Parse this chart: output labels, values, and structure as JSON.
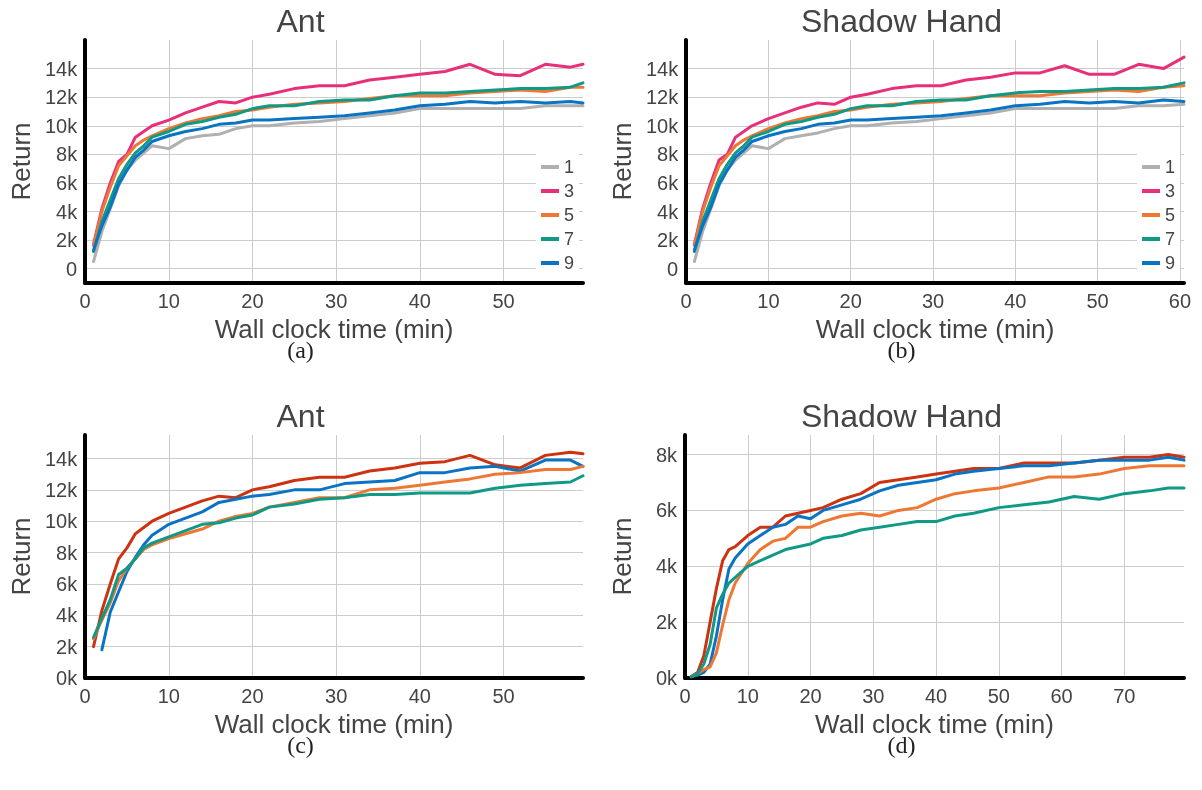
{
  "chart_data": [
    {
      "type": "line",
      "title": "Ant",
      "xlabel": "Wall clock time (min)",
      "ylabel": "Return",
      "annotations": [
        "(a)"
      ],
      "grid": true,
      "legend": "bottom right",
      "marker": "none",
      "xlim": [
        0,
        59.5
      ],
      "xticks": [
        0,
        10,
        20,
        30,
        40,
        50
      ],
      "ylim": [
        -1000,
        16000
      ],
      "yticks": [
        {
          "value": 0,
          "label": "0"
        },
        {
          "value": 2000,
          "label": "2k"
        },
        {
          "value": 4000,
          "label": "4k"
        },
        {
          "value": 6000,
          "label": "6k"
        },
        {
          "value": 8000,
          "label": "8k"
        },
        {
          "value": 10000,
          "label": "10k"
        },
        {
          "value": 12000,
          "label": "12k"
        },
        {
          "value": 14000,
          "label": "14k"
        }
      ],
      "x": [
        1,
        2,
        3,
        4,
        5,
        6,
        7,
        8,
        10,
        12,
        14,
        16,
        18,
        20,
        22,
        25,
        28,
        31,
        34,
        37,
        40,
        43,
        46,
        49,
        52,
        55,
        58,
        59.5
      ],
      "series": [
        {
          "name": "1",
          "color": "#b0b0b0",
          "values": [
            500,
            2600,
            4200,
            5800,
            6900,
            7600,
            8100,
            8600,
            8400,
            9100,
            9300,
            9400,
            9800,
            10000,
            10000,
            10200,
            10300,
            10500,
            10700,
            10900,
            11200,
            11200,
            11200,
            11200,
            11200,
            11400,
            11400,
            11400
          ]
        },
        {
          "name": "3",
          "color": "#e8307a",
          "values": [
            1700,
            4200,
            6000,
            7500,
            8000,
            9200,
            9600,
            10000,
            10400,
            10900,
            11300,
            11700,
            11600,
            12000,
            12200,
            12600,
            12800,
            12800,
            13200,
            13400,
            13600,
            13800,
            14300,
            13600,
            13500,
            14300,
            14100,
            14300
          ]
        },
        {
          "name": "5",
          "color": "#ee7733",
          "values": [
            1600,
            4000,
            5700,
            7200,
            7900,
            8600,
            9000,
            9300,
            9800,
            10200,
            10500,
            10700,
            11000,
            11100,
            11300,
            11500,
            11600,
            11700,
            11900,
            12100,
            12100,
            12100,
            12300,
            12400,
            12500,
            12400,
            12700,
            12700
          ]
        },
        {
          "name": "7",
          "color": "#109a85",
          "values": [
            1200,
            3300,
            4800,
            6300,
            7300,
            8100,
            8600,
            9200,
            9600,
            10100,
            10300,
            10600,
            10800,
            11200,
            11400,
            11400,
            11700,
            11800,
            11800,
            12100,
            12300,
            12300,
            12400,
            12500,
            12600,
            12600,
            12700,
            13000
          ]
        },
        {
          "name": "9",
          "color": "#0a74c4",
          "values": [
            1300,
            3000,
            4300,
            5900,
            6900,
            7800,
            8300,
            8900,
            9300,
            9600,
            9800,
            10100,
            10200,
            10400,
            10400,
            10500,
            10600,
            10700,
            10900,
            11100,
            11400,
            11500,
            11700,
            11600,
            11700,
            11600,
            11700,
            11600
          ]
        }
      ]
    },
    {
      "type": "line",
      "title": "Shadow Hand",
      "xlabel": "Wall clock time (min)",
      "ylabel": "Return",
      "annotations": [
        "(b)"
      ],
      "grid": true,
      "legend": "bottom right",
      "marker": "none",
      "xlim": [
        0,
        60.5
      ],
      "xticks": [
        0,
        10,
        20,
        30,
        40,
        50,
        60
      ],
      "ylim": [
        -1000,
        16000
      ],
      "yticks": [
        {
          "value": 0,
          "label": "0"
        },
        {
          "value": 2000,
          "label": "2k"
        },
        {
          "value": 4000,
          "label": "4k"
        },
        {
          "value": 6000,
          "label": "6k"
        },
        {
          "value": 8000,
          "label": "8k"
        },
        {
          "value": 10000,
          "label": "10k"
        },
        {
          "value": 12000,
          "label": "12k"
        },
        {
          "value": 14000,
          "label": "14k"
        }
      ],
      "x": [
        1,
        2,
        3,
        4,
        5,
        6,
        7,
        8,
        10,
        12,
        14,
        16,
        18,
        20,
        22,
        25,
        28,
        31,
        34,
        37,
        40,
        43,
        46,
        49,
        52,
        55,
        58,
        60.5
      ],
      "series": [
        {
          "name": "1",
          "color": "#b0b0b0",
          "values": [
            500,
            2600,
            4200,
            5800,
            6900,
            7600,
            8100,
            8600,
            8400,
            9100,
            9300,
            9500,
            9800,
            10000,
            10000,
            10200,
            10300,
            10500,
            10700,
            10900,
            11200,
            11200,
            11200,
            11200,
            11200,
            11400,
            11400,
            11500
          ]
        },
        {
          "name": "3",
          "color": "#e8307a",
          "values": [
            1700,
            4200,
            6000,
            7600,
            8000,
            9200,
            9600,
            10000,
            10500,
            10900,
            11300,
            11600,
            11500,
            12000,
            12200,
            12600,
            12800,
            12800,
            13200,
            13400,
            13700,
            13700,
            14200,
            13600,
            13600,
            14300,
            14000,
            14800
          ]
        },
        {
          "name": "5",
          "color": "#ee7733",
          "values": [
            1600,
            4000,
            5700,
            7200,
            7900,
            8600,
            9000,
            9300,
            9800,
            10200,
            10500,
            10700,
            11000,
            11100,
            11300,
            11500,
            11600,
            11700,
            11900,
            12100,
            12100,
            12100,
            12300,
            12400,
            12500,
            12400,
            12700,
            12800
          ]
        },
        {
          "name": "7",
          "color": "#109a85",
          "values": [
            1200,
            3300,
            4800,
            6300,
            7300,
            8100,
            8600,
            9200,
            9600,
            10100,
            10300,
            10600,
            10800,
            11200,
            11400,
            11400,
            11700,
            11800,
            11800,
            12100,
            12300,
            12400,
            12400,
            12500,
            12600,
            12600,
            12700,
            13000
          ]
        },
        {
          "name": "9",
          "color": "#0a74c4",
          "values": [
            1300,
            3000,
            4300,
            5900,
            6900,
            7800,
            8300,
            8900,
            9300,
            9600,
            9800,
            10100,
            10200,
            10400,
            10400,
            10500,
            10600,
            10700,
            10900,
            11100,
            11400,
            11500,
            11700,
            11600,
            11700,
            11600,
            11800,
            11700
          ]
        }
      ]
    },
    {
      "type": "line",
      "title": "Ant",
      "xlabel": "Wall clock time (min)",
      "ylabel": "Return",
      "annotations": [
        "(c)"
      ],
      "grid": true,
      "marker": "none",
      "xlim": [
        0,
        59.5
      ],
      "xticks": [
        0,
        10,
        20,
        30,
        40,
        50
      ],
      "ylim": [
        0,
        15500
      ],
      "yticks": [
        {
          "value": 0,
          "label": "0k"
        },
        {
          "value": 2000,
          "label": "2k"
        },
        {
          "value": 4000,
          "label": "4k"
        },
        {
          "value": 6000,
          "label": "6k"
        },
        {
          "value": 8000,
          "label": "8k"
        },
        {
          "value": 10000,
          "label": "10k"
        },
        {
          "value": 12000,
          "label": "12k"
        },
        {
          "value": 14000,
          "label": "14k"
        }
      ],
      "x": [
        1,
        2,
        3,
        4,
        5,
        6,
        7,
        8,
        10,
        12,
        14,
        16,
        18,
        20,
        22,
        25,
        28,
        31,
        34,
        37,
        40,
        43,
        46,
        49,
        52,
        55,
        58,
        59.5
      ],
      "series": [
        {
          "color": "#cc3311",
          "values": [
            2000,
            4300,
            6000,
            7600,
            8300,
            9200,
            9600,
            10000,
            10500,
            10900,
            11300,
            11600,
            11500,
            12000,
            12200,
            12600,
            12800,
            12800,
            13200,
            13400,
            13700,
            13800,
            14200,
            13600,
            13400,
            14200,
            14400,
            14300
          ]
        },
        {
          "color": "#0a74c4",
          "values": [
            null,
            1800,
            4200,
            5500,
            6800,
            7700,
            8500,
            9100,
            9800,
            10200,
            10600,
            11200,
            11400,
            11600,
            11700,
            12000,
            12000,
            12400,
            12500,
            12600,
            13100,
            13100,
            13400,
            13500,
            13200,
            13900,
            13900,
            13500
          ]
        },
        {
          "color": "#ee7733",
          "values": [
            2500,
            3700,
            4800,
            6200,
            7000,
            7600,
            8200,
            8500,
            8900,
            9200,
            9500,
            10000,
            10300,
            10500,
            10900,
            11200,
            11500,
            11500,
            12000,
            12100,
            12300,
            12500,
            12700,
            13000,
            13100,
            13300,
            13300,
            13500
          ]
        },
        {
          "color": "#109a85",
          "values": [
            2600,
            3800,
            5000,
            6600,
            7000,
            7600,
            8300,
            8600,
            9000,
            9400,
            9800,
            9900,
            10200,
            10400,
            10900,
            11100,
            11400,
            11500,
            11700,
            11700,
            11800,
            11800,
            11800,
            12100,
            12300,
            12400,
            12500,
            12900
          ]
        }
      ]
    },
    {
      "type": "line",
      "title": "Shadow Hand",
      "xlabel": "Wall clock time (min)",
      "ylabel": "Return",
      "annotations": [
        "(d)"
      ],
      "grid": true,
      "marker": "none",
      "xlim": [
        0,
        79.5
      ],
      "xticks": [
        0,
        10,
        20,
        30,
        40,
        50,
        60,
        70
      ],
      "ylim": [
        0,
        8700
      ],
      "yticks": [
        {
          "value": 0,
          "label": "0k"
        },
        {
          "value": 2000,
          "label": "2k"
        },
        {
          "value": 4000,
          "label": "4k"
        },
        {
          "value": 6000,
          "label": "6k"
        },
        {
          "value": 8000,
          "label": "8k"
        }
      ],
      "x": [
        1,
        2,
        3,
        4,
        5,
        6,
        7,
        8,
        10,
        12,
        14,
        16,
        18,
        20,
        22,
        25,
        28,
        31,
        34,
        37,
        40,
        43,
        46,
        50,
        54,
        58,
        62,
        66,
        70,
        74,
        77,
        79.5
      ],
      "series": [
        {
          "color": "#cc3311",
          "values": [
            50,
            200,
            800,
            2000,
            3200,
            4200,
            4600,
            4700,
            5100,
            5400,
            5400,
            5800,
            5900,
            6000,
            6100,
            6400,
            6600,
            7000,
            7100,
            7200,
            7300,
            7400,
            7500,
            7500,
            7700,
            7700,
            7700,
            7800,
            7900,
            7900,
            8000,
            7900
          ]
        },
        {
          "color": "#0a74c4",
          "values": [
            50,
            100,
            200,
            500,
            1500,
            2800,
            3900,
            4300,
            4800,
            5100,
            5400,
            5500,
            5800,
            5700,
            6000,
            6200,
            6400,
            6700,
            6900,
            7000,
            7100,
            7300,
            7400,
            7500,
            7600,
            7600,
            7700,
            7800,
            7800,
            7800,
            7900,
            7800
          ]
        },
        {
          "color": "#ee7733",
          "values": [
            50,
            150,
            300,
            400,
            900,
            1900,
            2800,
            3400,
            4100,
            4600,
            4900,
            5000,
            5400,
            5400,
            5600,
            5800,
            5900,
            5800,
            6000,
            6100,
            6400,
            6600,
            6700,
            6800,
            7000,
            7200,
            7200,
            7300,
            7500,
            7600,
            7600,
            7600
          ]
        },
        {
          "color": "#109a85",
          "values": [
            50,
            150,
            500,
            1200,
            2500,
            3000,
            3400,
            3600,
            4000,
            4200,
            4400,
            4600,
            4700,
            4800,
            5000,
            5100,
            5300,
            5400,
            5500,
            5600,
            5600,
            5800,
            5900,
            6100,
            6200,
            6300,
            6500,
            6400,
            6600,
            6700,
            6800,
            6800
          ]
        }
      ]
    }
  ]
}
